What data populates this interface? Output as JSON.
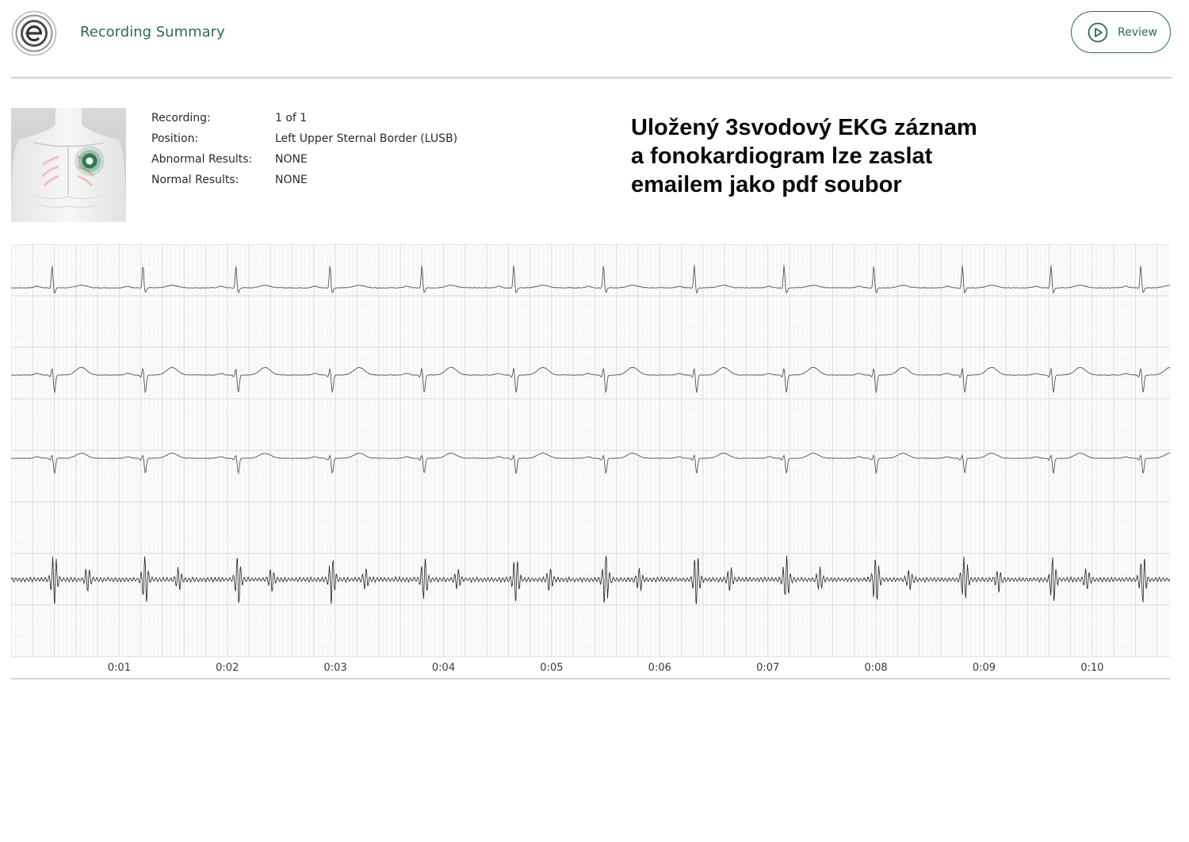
{
  "header": {
    "title": "Recording Summary",
    "review_label": "Review"
  },
  "recording": {
    "rows": [
      {
        "label": "Recording:",
        "value": "1 of 1"
      },
      {
        "label": "Position:",
        "value": "Left Upper Sternal Border (LUSB)"
      },
      {
        "label": "Abnormal Results:",
        "value": "NONE"
      },
      {
        "label": "Normal Results:",
        "value": "NONE"
      }
    ]
  },
  "note": {
    "lines": [
      "Uložený 3svodový EKG záznam",
      "a fonokardiogram lze zaslat",
      "emailem jako pdf soubor"
    ]
  },
  "colors": {
    "accent": "#2e6b4a",
    "marker": "#3d8a63",
    "grid_minor": "#ececf0",
    "grid_major": "#d9d9df",
    "trace": "#555555",
    "pcg_trace": "#222222"
  },
  "icons": {
    "logo": "eko-logo",
    "review": "play-circle-icon",
    "position": "chest-position-icon"
  },
  "chart_data": {
    "type": "line",
    "x_unit": "seconds",
    "xlim": [
      0,
      10.72
    ],
    "x_ticks": [
      "0:01",
      "0:02",
      "0:03",
      "0:04",
      "0:05",
      "0:06",
      "0:07",
      "0:08",
      "0:09",
      "0:10"
    ],
    "beats_s": [
      0.38,
      1.22,
      2.08,
      2.95,
      3.8,
      4.65,
      5.48,
      6.32,
      7.15,
      7.98,
      8.8,
      9.62,
      10.45
    ],
    "pcg_s1_amp": [
      1.0,
      0.95,
      0.95,
      0.9,
      0.85,
      0.95,
      1.0,
      1.0,
      0.9,
      0.95,
      0.95,
      0.9,
      0.95
    ],
    "series": [
      {
        "lead": 1,
        "r_amp": 0.9,
        "s_amp": 0.2,
        "t_amp": 0.1
      },
      {
        "lead": 2,
        "r_amp": 0.3,
        "s_amp": 0.7,
        "t_amp": 0.3
      },
      {
        "lead": 3,
        "r_amp": 0.15,
        "s_amp": 0.6,
        "t_amp": 0.2
      },
      {
        "lead": 4,
        "kind": "phonocardiogram"
      }
    ]
  }
}
